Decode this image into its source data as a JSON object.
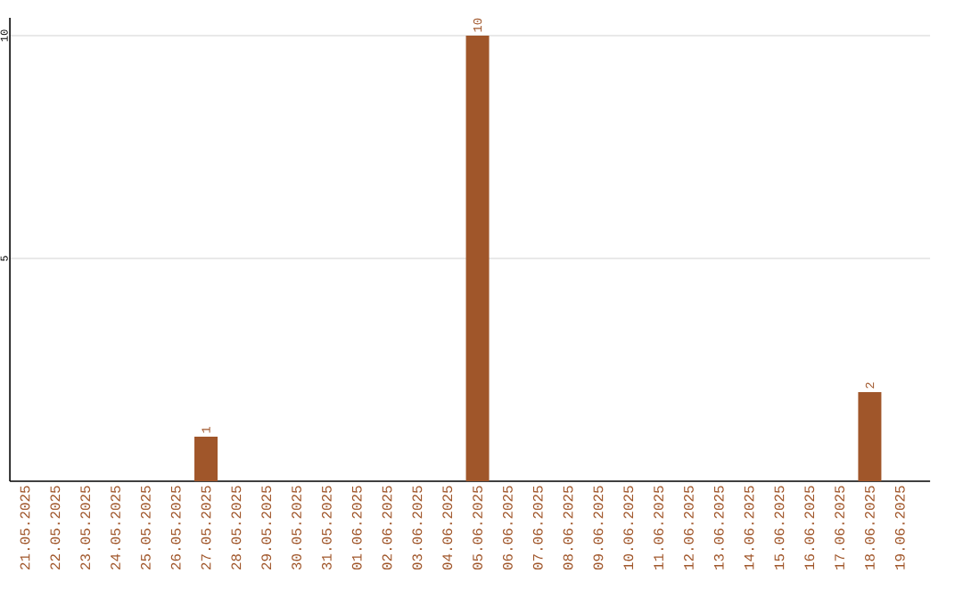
{
  "chart_data": {
    "type": "bar",
    "categories": [
      "21.05.2025",
      "22.05.2025",
      "23.05.2025",
      "24.05.2025",
      "25.05.2025",
      "26.05.2025",
      "27.05.2025",
      "28.05.2025",
      "29.05.2025",
      "30.05.2025",
      "31.05.2025",
      "01.06.2025",
      "02.06.2025",
      "03.06.2025",
      "04.06.2025",
      "05.06.2025",
      "06.06.2025",
      "07.06.2025",
      "08.06.2025",
      "09.06.2025",
      "10.06.2025",
      "11.06.2025",
      "12.06.2025",
      "13.06.2025",
      "14.06.2025",
      "15.06.2025",
      "16.06.2025",
      "17.06.2025",
      "18.06.2025",
      "19.06.2025"
    ],
    "values": [
      0,
      0,
      0,
      0,
      0,
      0,
      1,
      0,
      0,
      0,
      0,
      0,
      0,
      0,
      0,
      10,
      0,
      0,
      0,
      0,
      0,
      0,
      0,
      0,
      0,
      0,
      0,
      0,
      2,
      0
    ],
    "value_labels": [
      null,
      null,
      null,
      null,
      null,
      null,
      "1",
      null,
      null,
      null,
      null,
      null,
      null,
      null,
      null,
      "10",
      null,
      null,
      null,
      null,
      null,
      null,
      null,
      null,
      null,
      null,
      null,
      null,
      "2",
      null
    ],
    "color": "#a0562a",
    "ylim": [
      0,
      10.4
    ],
    "yticks": [
      5,
      10
    ],
    "grid": "y"
  }
}
